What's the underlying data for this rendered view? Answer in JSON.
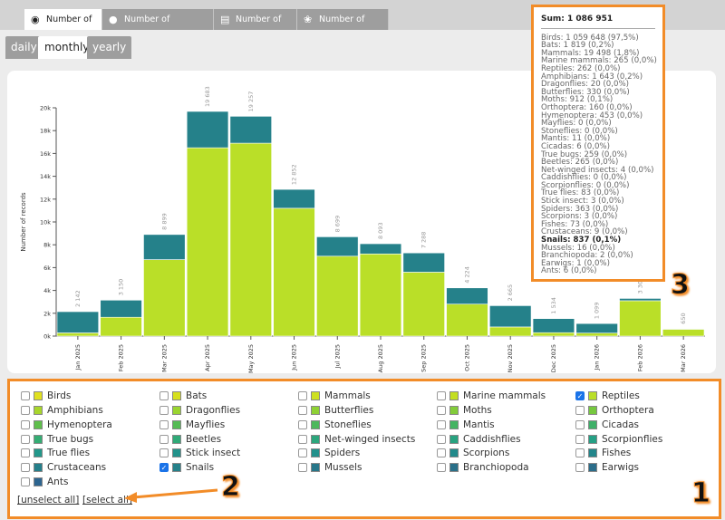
{
  "tabs": [
    {
      "label": "Number of records",
      "icon": "binoculars-icon",
      "active": true
    },
    {
      "label": "Number of contributors",
      "icon": "user-icon",
      "active": false
    },
    {
      "label": "Number of lists",
      "icon": "list-icon",
      "active": false
    },
    {
      "label": "Number of species",
      "icon": "species-icon",
      "active": false
    }
  ],
  "periods": [
    {
      "label": "daily",
      "active": false
    },
    {
      "label": "monthly",
      "active": true
    },
    {
      "label": "yearly",
      "active": false
    }
  ],
  "chart_data": {
    "type": "bar",
    "stacked": true,
    "ylabel": "Number of records",
    "ylim": [
      0,
      20000
    ],
    "yticks": [
      "0k",
      "2k",
      "4k",
      "6k",
      "8k",
      "10k",
      "12k",
      "14k",
      "16k",
      "18k",
      "20k"
    ],
    "categories": [
      "Jan 2025",
      "Feb 2025",
      "Mar 2025",
      "Apr 2025",
      "May 2025",
      "Jun 2025",
      "Jul 2025",
      "Aug 2025",
      "Sep 2025",
      "Oct 2025",
      "Nov 2025",
      "Dec 2025",
      "Jan 2026",
      "Feb 2026",
      "Mar 2026"
    ],
    "totals": [
      "2 142",
      "3 150",
      "8 899",
      "19 683",
      "19 257",
      "12 852",
      "8 699",
      "8 093",
      "7 288",
      "4 224",
      "2 665",
      "1 534",
      "1 099",
      "3 300",
      "650"
    ],
    "series": [
      {
        "name": "Reptiles",
        "color": "#badf28",
        "values": [
          280,
          1650,
          6700,
          16500,
          16900,
          11200,
          7000,
          7200,
          5600,
          2800,
          800,
          300,
          262,
          3100,
          600
        ]
      },
      {
        "name": "Snails",
        "color": "#25818a",
        "values": [
          1862,
          1500,
          2199,
          3183,
          2357,
          1652,
          1699,
          893,
          1688,
          1424,
          1865,
          1234,
          837,
          200,
          50
        ]
      }
    ]
  },
  "tooltip": {
    "sum": "Sum: 1 086 951",
    "items": [
      {
        "text": "Birds: 1 059 648 (97,5%)"
      },
      {
        "text": "Bats: 1 819 (0,2%)"
      },
      {
        "text": "Mammals: 19 498 (1,8%)"
      },
      {
        "text": "Marine mammals: 265 (0,0%)"
      },
      {
        "text": "Reptiles: 262 (0,0%)"
      },
      {
        "text": "Amphibians: 1 643 (0,2%)"
      },
      {
        "text": "Dragonflies: 20 (0,0%)"
      },
      {
        "text": "Butterflies: 330 (0,0%)"
      },
      {
        "text": "Moths: 912 (0,1%)"
      },
      {
        "text": "Orthoptera: 160 (0,0%)"
      },
      {
        "text": "Hymenoptera: 453 (0,0%)"
      },
      {
        "text": "Mayflies: 0 (0,0%)"
      },
      {
        "text": "Stoneflies: 0 (0,0%)"
      },
      {
        "text": "Mantis: 11 (0,0%)"
      },
      {
        "text": "Cicadas: 6 (0,0%)"
      },
      {
        "text": "True bugs: 259 (0,0%)"
      },
      {
        "text": "Beetles: 265 (0,0%)"
      },
      {
        "text": "Net-winged insects: 4 (0,0%)"
      },
      {
        "text": "Caddishflies: 0 (0,0%)"
      },
      {
        "text": "Scorpionflies: 0 (0,0%)"
      },
      {
        "text": "True flies: 83 (0,0%)"
      },
      {
        "text": "Stick insect: 3 (0,0%)"
      },
      {
        "text": "Spiders: 363 (0,0%)"
      },
      {
        "text": "Scorpions: 3 (0,0%)"
      },
      {
        "text": "Fishes: 73 (0,0%)"
      },
      {
        "text": "Crustaceans: 9 (0,0%)"
      },
      {
        "text": "Snails: 837 (0,1%)",
        "bold": true
      },
      {
        "text": "Mussels: 16 (0,0%)"
      },
      {
        "text": "Branchiopoda: 2 (0,0%)"
      },
      {
        "text": "Earwigs: 1 (0,0%)"
      },
      {
        "text": "Ants: 6 (0,0%)"
      }
    ]
  },
  "legend": {
    "items": [
      {
        "label": "Birds",
        "color": "#e0e020",
        "checked": false
      },
      {
        "label": "Bats",
        "color": "#d6e01e",
        "checked": false
      },
      {
        "label": "Mammals",
        "color": "#cde01f",
        "checked": false
      },
      {
        "label": "Marine mammals",
        "color": "#c3de20",
        "checked": false
      },
      {
        "label": "Reptiles",
        "color": "#badf28",
        "checked": true
      },
      {
        "label": "Amphibians",
        "color": "#a8d62c",
        "checked": false
      },
      {
        "label": "Dragonflies",
        "color": "#9ad530",
        "checked": false
      },
      {
        "label": "Butterflies",
        "color": "#8ed134",
        "checked": false
      },
      {
        "label": "Moths",
        "color": "#82cc3a",
        "checked": false
      },
      {
        "label": "Orthoptera",
        "color": "#76c83f",
        "checked": false
      },
      {
        "label": "Hymenoptera",
        "color": "#5fbf4c",
        "checked": false
      },
      {
        "label": "Mayflies",
        "color": "#55bb55",
        "checked": false
      },
      {
        "label": "Stoneflies",
        "color": "#4db85c",
        "checked": false
      },
      {
        "label": "Mantis",
        "color": "#45b462",
        "checked": false
      },
      {
        "label": "Cicadas",
        "color": "#3eb068",
        "checked": false
      },
      {
        "label": "True bugs",
        "color": "#35ad74",
        "checked": false
      },
      {
        "label": "Beetles",
        "color": "#30aa78",
        "checked": false
      },
      {
        "label": "Net-winged insects",
        "color": "#2ca67c",
        "checked": false
      },
      {
        "label": "Caddishflies",
        "color": "#28a380",
        "checked": false
      },
      {
        "label": "Scorpionflies",
        "color": "#25a085",
        "checked": false
      },
      {
        "label": "True flies",
        "color": "#22978a",
        "checked": false
      },
      {
        "label": "Stick insect",
        "color": "#22928b",
        "checked": false
      },
      {
        "label": "Spiders",
        "color": "#21908b",
        "checked": false
      },
      {
        "label": "Scorpions",
        "color": "#228a8b",
        "checked": false
      },
      {
        "label": "Fishes",
        "color": "#23868b",
        "checked": false
      },
      {
        "label": "Crustaceans",
        "color": "#25808b",
        "checked": false
      },
      {
        "label": "Snails",
        "color": "#25818a",
        "checked": true
      },
      {
        "label": "Mussels",
        "color": "#277689",
        "checked": false
      },
      {
        "label": "Branchiopoda",
        "color": "#2a7089",
        "checked": false
      },
      {
        "label": "Earwigs",
        "color": "#2b6d8a",
        "checked": false
      },
      {
        "label": "Ants",
        "color": "#2d6590",
        "checked": false
      }
    ],
    "unselect_all": "[unselect all]",
    "select_all": "[select all]"
  },
  "annotations": {
    "one": "1",
    "two": "2",
    "three": "3",
    "accent": "#f28c28"
  }
}
